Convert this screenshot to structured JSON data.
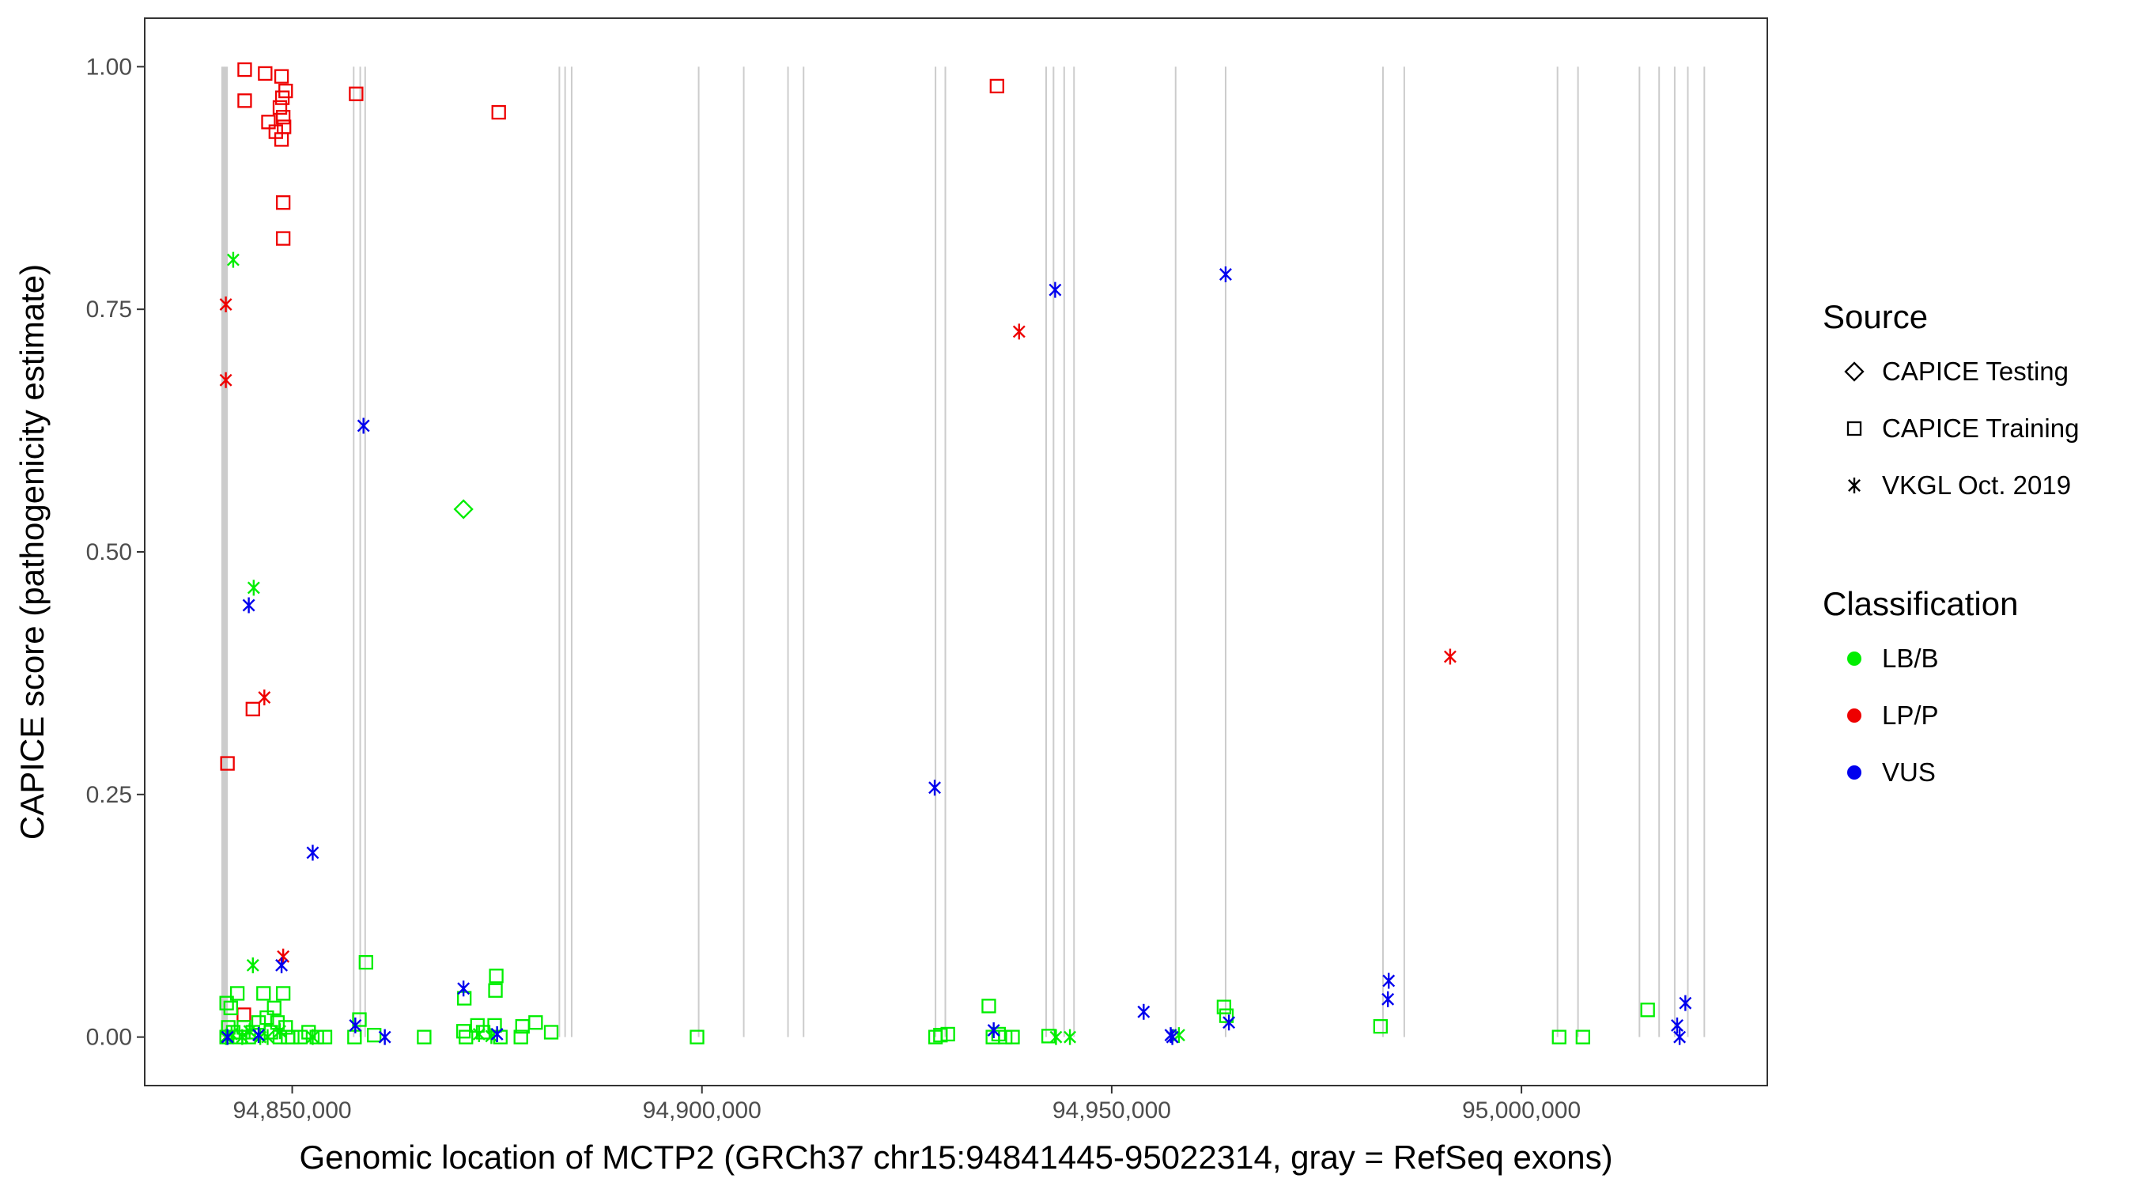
{
  "chart_data": {
    "type": "scatter",
    "xlabel": "Genomic location of MCTP2 (GRCh37 chr15:94841445-95022314, gray = RefSeq exons)",
    "ylabel": "CAPICE score (pathogenicity estimate)",
    "xlim": [
      94832000,
      95030000
    ],
    "ylim": [
      -0.05,
      1.05
    ],
    "x_ticks": [
      94850000,
      94900000,
      94950000,
      95000000
    ],
    "x_tick_labels": [
      "94,850,000",
      "94,900,000",
      "94,950,000",
      "95,000,000"
    ],
    "y_ticks": [
      0,
      0.25,
      0.5,
      0.75,
      1.0
    ],
    "y_tick_labels": [
      "0.00",
      "0.25",
      "0.50",
      "0.75",
      "1.00"
    ],
    "grid": false,
    "exon_lines_color": "#cccccc",
    "exons": [
      94841445,
      94841600,
      94841750,
      94841900,
      94842050,
      94857500,
      94858300,
      94858900,
      94882600,
      94883300,
      94884100,
      94899600,
      94905100,
      94910500,
      94912400,
      94928500,
      94929700,
      94942000,
      94942900,
      94944200,
      94945400,
      94957800,
      94963900,
      94983100,
      94985700,
      95004400,
      95006900,
      95014400,
      95016800,
      95018700,
      95020300,
      95022314
    ],
    "legend": {
      "placement": "right",
      "source_title": "Source",
      "source_items": [
        {
          "label": "CAPICE Testing",
          "shape": "diamond"
        },
        {
          "label": "CAPICE Training",
          "shape": "square"
        },
        {
          "label": "VKGL Oct. 2019",
          "shape": "asterisk"
        }
      ],
      "class_title": "Classification",
      "class_items": [
        {
          "label": "LB/B",
          "color": "#00ee00"
        },
        {
          "label": "LP/P",
          "color": "#ee0000"
        },
        {
          "label": "VUS",
          "color": "#0000ee"
        }
      ]
    },
    "series": [
      {
        "source": "CAPICE Training",
        "classification": "LP/P",
        "points": [
          [
            94844200,
            0.997
          ],
          [
            94846700,
            0.993
          ],
          [
            94848700,
            0.99
          ],
          [
            94849200,
            0.975
          ],
          [
            94848800,
            0.968
          ],
          [
            94844200,
            0.965
          ],
          [
            94848500,
            0.958
          ],
          [
            94848900,
            0.948
          ],
          [
            94847100,
            0.943
          ],
          [
            94849000,
            0.938
          ],
          [
            94848000,
            0.933
          ],
          [
            94848700,
            0.925
          ],
          [
            94848900,
            0.86
          ],
          [
            94848900,
            0.823
          ],
          [
            94845200,
            0.338
          ],
          [
            94842100,
            0.282
          ],
          [
            94844100,
            0.023
          ],
          [
            94857800,
            0.972
          ],
          [
            94875200,
            0.953
          ],
          [
            94936000,
            0.98
          ]
        ]
      },
      {
        "source": "CAPICE Training",
        "classification": "LB/B",
        "points": [
          [
            94842000,
            0.035
          ],
          [
            94842500,
            0.03
          ],
          [
            94843300,
            0.045
          ],
          [
            94842200,
            0.01
          ],
          [
            94842800,
            0.005
          ],
          [
            94842000,
            0.0
          ],
          [
            94843600,
            0.0
          ],
          [
            94844100,
            0.01
          ],
          [
            94844700,
            0.0
          ],
          [
            94845200,
            0.005
          ],
          [
            94845900,
            0.015
          ],
          [
            94846500,
            0.045
          ],
          [
            94846900,
            0.02
          ],
          [
            94847400,
            0.005
          ],
          [
            94847800,
            0.03
          ],
          [
            94848200,
            0.015
          ],
          [
            94848500,
            0.0
          ],
          [
            94848900,
            0.045
          ],
          [
            94849200,
            0.01
          ],
          [
            94849500,
            0.0
          ],
          [
            94850000,
            0.0
          ],
          [
            94851000,
            0.0
          ],
          [
            94852000,
            0.005
          ],
          [
            94853000,
            0.0
          ],
          [
            94854000,
            0.0
          ],
          [
            94857600,
            0.0
          ],
          [
            94858200,
            0.018
          ],
          [
            94859000,
            0.077
          ],
          [
            94860000,
            0.002
          ],
          [
            94866100,
            0.0
          ],
          [
            94870900,
            0.006
          ],
          [
            94871000,
            0.04
          ],
          [
            94871200,
            0.0
          ],
          [
            94872600,
            0.012
          ],
          [
            94873300,
            0.005
          ],
          [
            94874900,
            0.063
          ],
          [
            94874800,
            0.048
          ],
          [
            94874700,
            0.012
          ],
          [
            94875400,
            0.0
          ],
          [
            94877900,
            0.0
          ],
          [
            94878100,
            0.011
          ],
          [
            94879700,
            0.015
          ],
          [
            94881600,
            0.005
          ],
          [
            94899400,
            0.0
          ],
          [
            94928500,
            0.0
          ],
          [
            94929100,
            0.002
          ],
          [
            94930000,
            0.003
          ],
          [
            94935000,
            0.032
          ],
          [
            94935500,
            0.0
          ],
          [
            94936200,
            0.003
          ],
          [
            94937000,
            0.0
          ],
          [
            94937900,
            0.0
          ],
          [
            94942300,
            0.001
          ],
          [
            94963700,
            0.031
          ],
          [
            94964000,
            0.022
          ],
          [
            94982800,
            0.011
          ],
          [
            95004600,
            0.0
          ],
          [
            95007500,
            0.0
          ],
          [
            95015400,
            0.028
          ]
        ]
      },
      {
        "source": "CAPICE Testing",
        "classification": "LB/B",
        "points": [
          [
            94870900,
            0.544
          ]
        ]
      },
      {
        "source": "VKGL Oct. 2019",
        "classification": "LB/B",
        "points": [
          [
            94842800,
            0.801
          ],
          [
            94845300,
            0.463
          ],
          [
            94845200,
            0.074
          ],
          [
            94841900,
            0.0
          ],
          [
            94842600,
            0.003
          ],
          [
            94843900,
            0.0
          ],
          [
            94844800,
            0.006
          ],
          [
            94846100,
            0.0
          ],
          [
            94847000,
            0.0
          ],
          [
            94848500,
            0.006
          ],
          [
            94852500,
            0.0
          ],
          [
            94872800,
            0.003
          ],
          [
            94874300,
            0.001
          ],
          [
            94943200,
            0.0
          ],
          [
            94944900,
            0.0
          ],
          [
            94958200,
            0.002
          ]
        ]
      },
      {
        "source": "VKGL Oct. 2019",
        "classification": "LP/P",
        "points": [
          [
            94841900,
            0.755
          ],
          [
            94841900,
            0.677
          ],
          [
            94846600,
            0.35
          ],
          [
            94848900,
            0.083
          ],
          [
            94938700,
            0.727
          ],
          [
            94991300,
            0.392
          ]
        ]
      },
      {
        "source": "VKGL Oct. 2019",
        "classification": "VUS",
        "points": [
          [
            94844700,
            0.445
          ],
          [
            94848700,
            0.074
          ],
          [
            94842100,
            0.0
          ],
          [
            94845900,
            0.002
          ],
          [
            94852500,
            0.19
          ],
          [
            94858700,
            0.63
          ],
          [
            94857700,
            0.012
          ],
          [
            94861300,
            0.0
          ],
          [
            94870900,
            0.05
          ],
          [
            94875000,
            0.003
          ],
          [
            94928400,
            0.257
          ],
          [
            94935600,
            0.007
          ],
          [
            94943100,
            0.77
          ],
          [
            94953900,
            0.026
          ],
          [
            94957200,
            0.002
          ],
          [
            94957400,
            0.0
          ],
          [
            94963900,
            0.786
          ],
          [
            94964300,
            0.015
          ],
          [
            94983800,
            0.058
          ],
          [
            94983700,
            0.039
          ],
          [
            95019000,
            0.012
          ],
          [
            95019300,
            0.0
          ],
          [
            95020000,
            0.035
          ]
        ]
      }
    ]
  }
}
